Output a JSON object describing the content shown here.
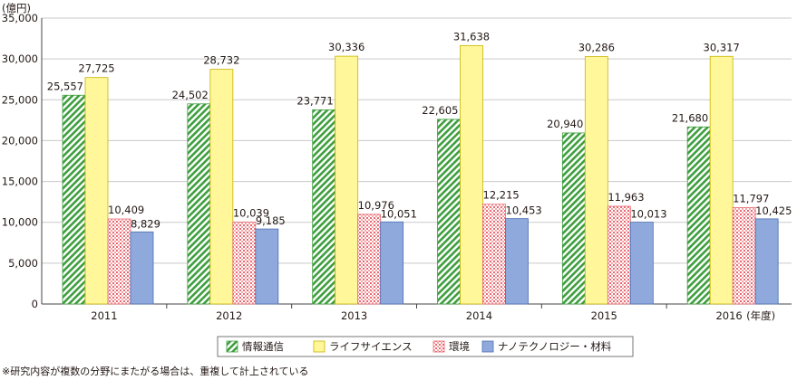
{
  "chart_data": {
    "type": "bar",
    "ylabel": "(億円)",
    "ylim": [
      0,
      35000
    ],
    "yticks": [
      0,
      5000,
      10000,
      15000,
      20000,
      25000,
      30000,
      35000
    ],
    "ytick_labels": [
      "0",
      "5,000",
      "10,000",
      "15,000",
      "20,000",
      "25,000",
      "30,000",
      "35,000"
    ],
    "categories": [
      "2011",
      "2012",
      "2013",
      "2014",
      "2015",
      "2016"
    ],
    "xaxis_suffix": "(年度)",
    "grid": "horizontal",
    "legend_position": "bottom",
    "series": [
      {
        "name": "情報通信",
        "pattern": "diagonal-hatch",
        "color": "#3f9e3f",
        "values": [
          25557,
          24502,
          23771,
          22605,
          20940,
          21680
        ],
        "labels": [
          "25,557",
          "24,502",
          "23,771",
          "22,605",
          "20,940",
          "21,680"
        ]
      },
      {
        "name": "ライフサイエンス",
        "pattern": "solid",
        "color": "#fff799",
        "values": [
          27725,
          28732,
          30336,
          31638,
          30286,
          30317
        ],
        "labels": [
          "27,725",
          "28,732",
          "30,336",
          "31,638",
          "30,286",
          "30,317"
        ]
      },
      {
        "name": "環境",
        "pattern": "dots",
        "color": "#e8686f",
        "values": [
          10409,
          10039,
          10976,
          12215,
          11963,
          11797
        ],
        "labels": [
          "10,409",
          "10,039",
          "10,976",
          "12,215",
          "11,963",
          "11,797"
        ]
      },
      {
        "name": "ナノテクノロジー・材料",
        "pattern": "solid",
        "color": "#8fa9dc",
        "values": [
          8829,
          9185,
          10051,
          10453,
          10013,
          10425
        ],
        "labels": [
          "8,829",
          "9,185",
          "10,051",
          "10,453",
          "10,013",
          "10,425"
        ]
      }
    ]
  },
  "footnote": "※研究内容が複数の分野にまたがる場合は、重複して計上されている"
}
